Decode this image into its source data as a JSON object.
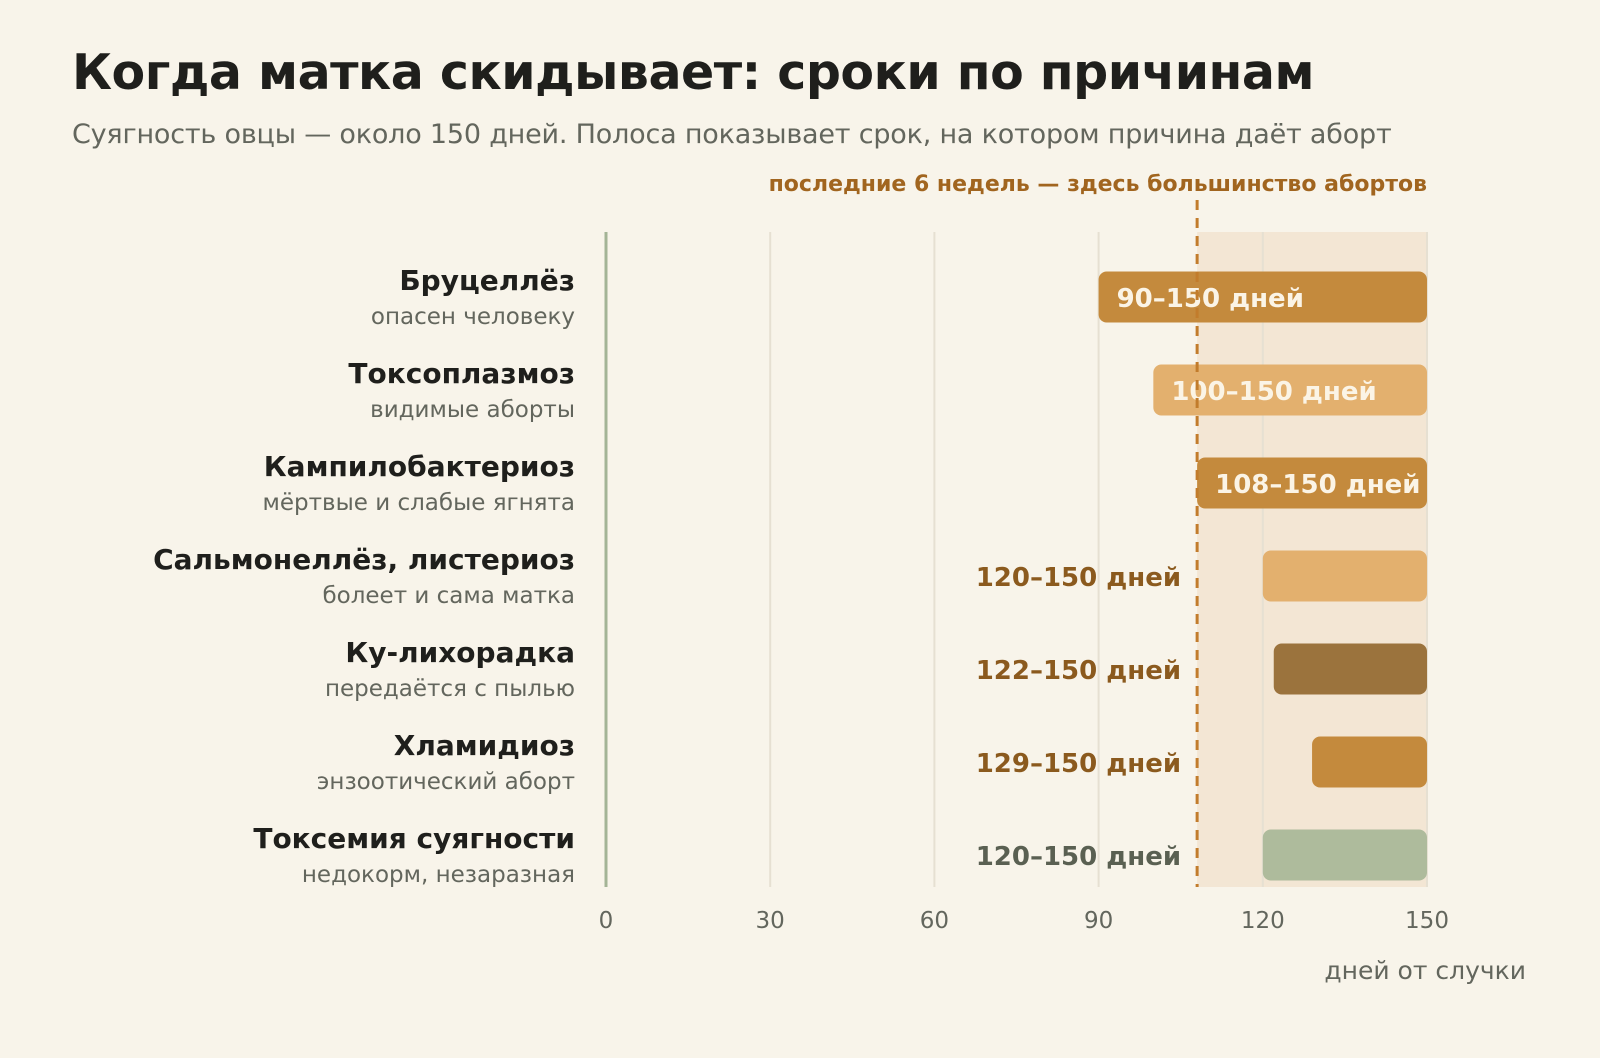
{
  "title": "Когда матка скидывает: сроки по причинам",
  "subtitle": "Суягность овцы — около 150 дней. Полоса показывает срок, на котором причина даёт аборт",
  "chart_data": {
    "type": "bar",
    "orientation": "horizontal",
    "title": "Когда матка скидывает: сроки по причинам",
    "subtitle": "Суягность овцы — около 150 дней. Полоса показывает срок, на котором причина даёт аборт",
    "xlabel": "дней от случки",
    "xlim": [
      0,
      150
    ],
    "xticks": [
      0,
      30,
      60,
      90,
      120,
      150
    ],
    "grid": "vertical",
    "highlight": {
      "from": 108,
      "to": 150,
      "label": "последние 6 недель — здесь большинство абортов",
      "color": "#f3e6d4",
      "line_color": "#c27c2c"
    },
    "series": [
      {
        "category": "Бруцеллёз",
        "note": "опасен человеку",
        "start": 90,
        "end": 150,
        "label": "90–150 дней",
        "color": "#c48a3d",
        "label_position": "inside"
      },
      {
        "category": "Токсоплазмоз",
        "note": "видимые аборты",
        "start": 100,
        "end": 150,
        "label": "100–150 дней",
        "color": "#e3b06e",
        "label_position": "inside"
      },
      {
        "category": "Кампилобактериоз",
        "note": "мёртвые и слабые ягнята",
        "start": 108,
        "end": 150,
        "label": "108–150 дней",
        "color": "#c48a3d",
        "label_position": "inside"
      },
      {
        "category": "Сальмонеллёз, листериоз",
        "note": "болеет и сама матка",
        "start": 120,
        "end": 150,
        "label": "120–150 дней",
        "color": "#e3b06e",
        "label_position": "outside"
      },
      {
        "category": "Ку-лихорадка",
        "note": "передаётся с пылью",
        "start": 122,
        "end": 150,
        "label": "122–150 дней",
        "color": "#9b733d",
        "label_position": "outside"
      },
      {
        "category": "Хламидиоз",
        "note": "энзоотический аборт",
        "start": 129,
        "end": 150,
        "label": "129–150 дней",
        "color": "#c48a3d",
        "label_position": "outside"
      },
      {
        "category": "Токсемия суягности",
        "note": "недокорм, незаразная",
        "start": 120,
        "end": 150,
        "label": "120–150 дней",
        "color": "#aebb9c",
        "label_position": "outside",
        "label_color": "#5a6052"
      }
    ],
    "colors": {
      "inside_label": "#fbf4e6",
      "outside_label": "#8b5a1e",
      "grid": "#e6e0d2",
      "axis": "#a4b496"
    }
  }
}
